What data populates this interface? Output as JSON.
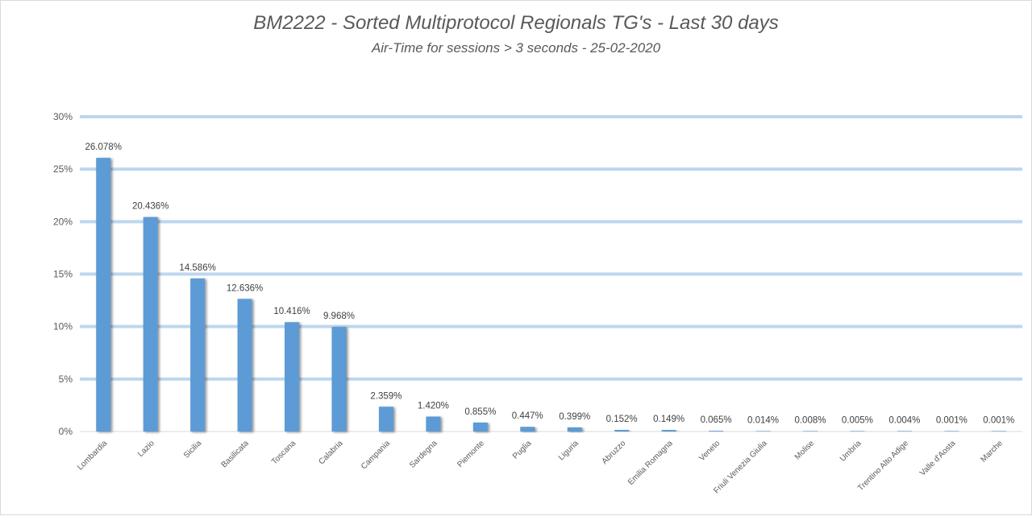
{
  "chart_data": {
    "type": "bar",
    "title": "BM2222 - Sorted Multiprotocol Regionals TG's - Last 30 days",
    "subtitle": "Air-Time for sessions > 3 seconds - 25-02-2020",
    "xlabel": "",
    "ylabel": "",
    "ylim": [
      0,
      30
    ],
    "yticks": [
      "0%",
      "5%",
      "10%",
      "15%",
      "20%",
      "25%",
      "30%"
    ],
    "ytick_values": [
      0,
      5,
      10,
      15,
      20,
      25,
      30
    ],
    "grid": true,
    "legend": "none",
    "colors": {
      "bar": "#5b9bd5",
      "gridline": "#bdd7ee",
      "text": "#595959"
    },
    "categories": [
      "Lombardia",
      "Lazio",
      "Sicilia",
      "Basilicata",
      "Toscana",
      "Calabria",
      "Campania",
      "Sardegna",
      "Piemonte",
      "Puglia",
      "Liguria",
      "Abruzzo",
      "Emilia Romagna",
      "Veneto",
      "Friuli Venezia Giulia",
      "Molise",
      "Umbria",
      "Trentino Alto Adige",
      "Valle d'Aosta",
      "Marche"
    ],
    "values": [
      26.078,
      20.436,
      14.586,
      12.636,
      10.416,
      9.968,
      2.359,
      1.42,
      0.855,
      0.447,
      0.399,
      0.152,
      0.149,
      0.065,
      0.014,
      0.008,
      0.005,
      0.004,
      0.001,
      0.001
    ],
    "data_labels": [
      "26.078%",
      "20.436%",
      "14.586%",
      "12.636%",
      "10.416%",
      "9.968%",
      "2.359%",
      "1.420%",
      "0.855%",
      "0.447%",
      "0.399%",
      "0.152%",
      "0.149%",
      "0.065%",
      "0.014%",
      "0.008%",
      "0.005%",
      "0.004%",
      "0.001%",
      "0.001%"
    ]
  }
}
